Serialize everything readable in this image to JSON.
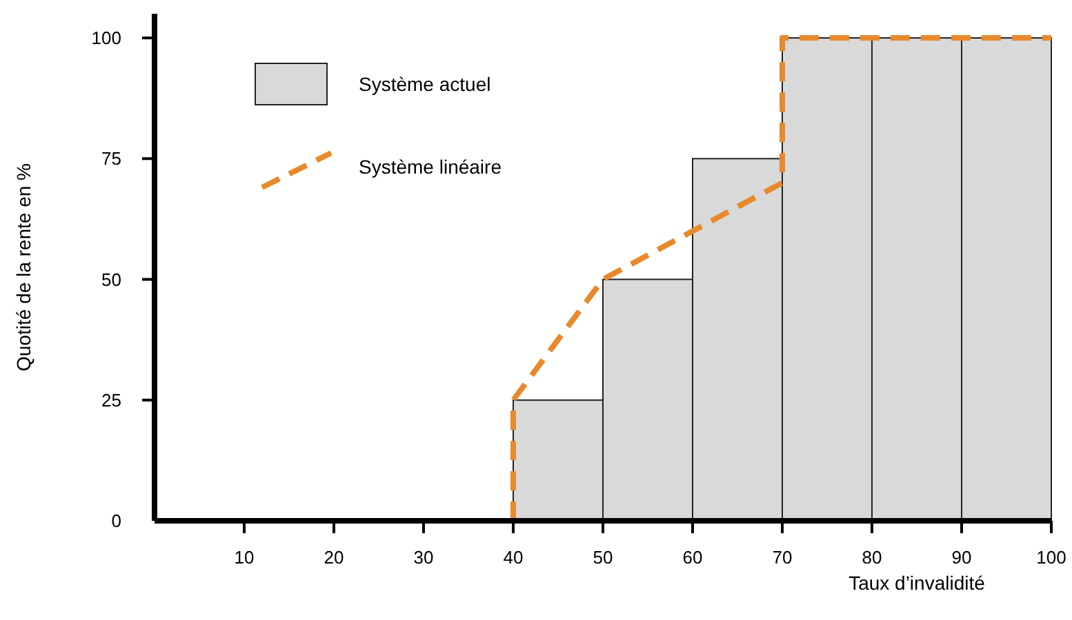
{
  "chart_data": {
    "type": "histogram",
    "xlabel": "Taux d’invalidité",
    "ylabel": "Quotité de la rente en %",
    "xlim": [
      0,
      100
    ],
    "ylim": [
      0,
      105
    ],
    "xticks": [
      10,
      20,
      30,
      40,
      50,
      60,
      70,
      80,
      90,
      100
    ],
    "yticks": [
      0,
      25,
      50,
      75,
      100
    ],
    "grid": false,
    "legend": "top left",
    "series": [
      {
        "type": "histogram",
        "name": "Système actuel",
        "color": "#d9d9d9",
        "bins": [
          40,
          50,
          60,
          70,
          80,
          90,
          100
        ],
        "values": [
          25,
          50,
          75,
          100,
          100,
          100
        ]
      },
      {
        "type": "line",
        "name": "Système linéaire",
        "color": "#e8892b",
        "line_style": "dashed",
        "marker": "none",
        "x": [
          40,
          40,
          50,
          70,
          70,
          100
        ],
        "values": [
          0,
          25,
          50,
          70,
          100,
          100
        ]
      }
    ]
  }
}
